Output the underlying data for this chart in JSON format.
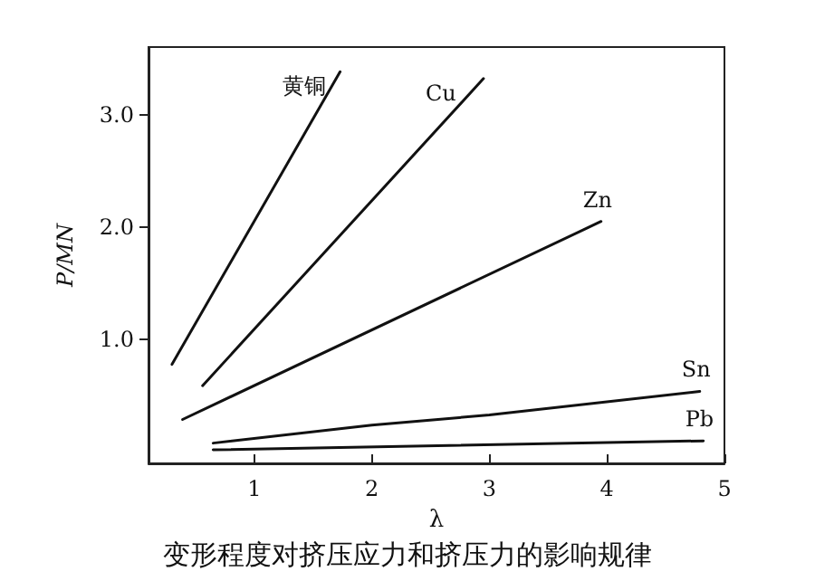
{
  "chart_data": {
    "type": "line",
    "title": "变形程度对挤压应力和挤压力的影响规律",
    "xlabel": "λ",
    "ylabel": "P/MN",
    "xlim": [
      0.1,
      5
    ],
    "xticks": [
      1,
      2,
      3,
      4,
      5
    ],
    "ylim": [
      -0.1,
      3.6
    ],
    "yticks": [
      {
        "value": 1,
        "label": "1.0"
      },
      {
        "value": 2,
        "label": "2.0"
      },
      {
        "value": 3,
        "label": "3.0"
      }
    ],
    "grid": false,
    "legend": false,
    "marker": "none",
    "line_style": "solid",
    "series": [
      {
        "name": "黄铜",
        "color": "#111111",
        "x": [
          0.3,
          1.73
        ],
        "values": [
          0.78,
          3.38
        ]
      },
      {
        "name": "Cu",
        "color": "#111111",
        "x": [
          0.56,
          2.95
        ],
        "values": [
          0.59,
          3.32
        ]
      },
      {
        "name": "Zn",
        "color": "#111111",
        "x": [
          0.39,
          3.95
        ],
        "values": [
          0.29,
          2.05
        ]
      },
      {
        "name": "Sn",
        "color": "#111111",
        "x": [
          0.65,
          2,
          3,
          4.79
        ],
        "values": [
          0.08,
          0.24,
          0.33,
          0.54
        ]
      },
      {
        "name": "Pb",
        "color": "#111111",
        "x": [
          0.65,
          4.82
        ],
        "values": [
          0.02,
          0.1
        ]
      }
    ]
  }
}
